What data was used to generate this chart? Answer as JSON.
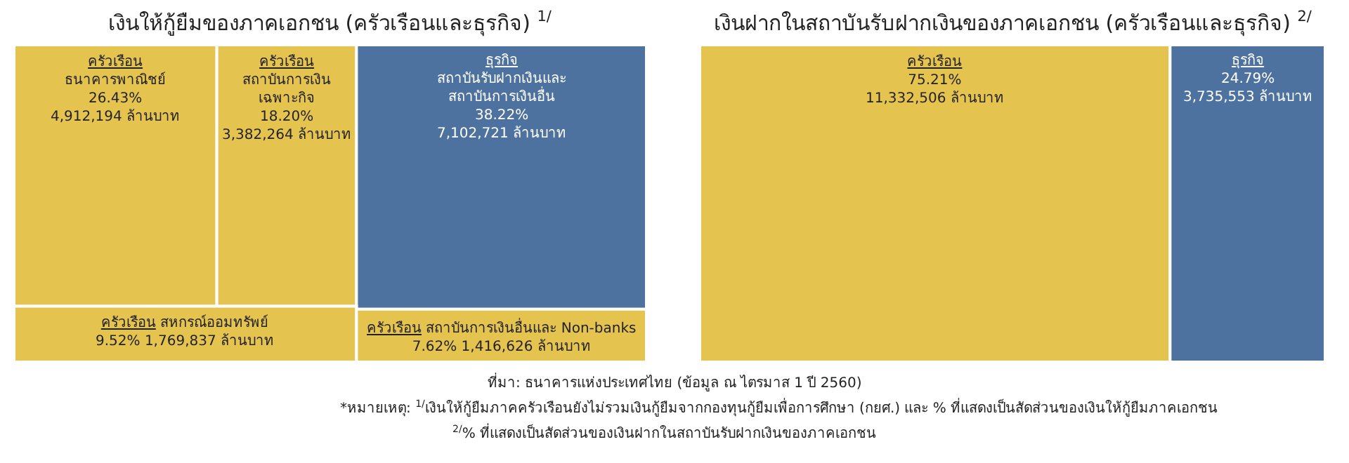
{
  "chart_data": [
    {
      "type": "other",
      "title": "เงินให้กู้ยืมของภาคเอกชน (ครัวเรือนและธุรกิจ) $^{1/}$",
      "categories": [
        "ครัวเรือน\nธนาคารพาณิชย์",
        "ครัวเรือน\nสถาบันการเงิน\nเฉพาะกิจ",
        "ธุรกิจ\nสถาบันรับฝากเงินและ\nสถาบันการเงินอื่น",
        "ครัวเรือน\nสหกรณ์ออมทรัพย์",
        "ครัวเรือน\nสถาบันการเงินอื่นและ Non-banks"
      ],
      "values": [
        26.43,
        18.2,
        38.22,
        9.52,
        7.62
      ],
      "value_labels": [
        "26.43%\n4,912,194 ล้านบาท",
        "18.20%\n3,382,264 ล้านบาท",
        "38.22%\n7,102,721 ล้านบาท",
        "9.52%\n1,769,837 ล้านบาท",
        "7.62%\n1,416,626 ล้านบาท"
      ],
      "colors": [
        "#e5c34f",
        "#e5c34f",
        "#4e72a0",
        "#e5c34f",
        "#e5c34f"
      ],
      "annotations": [
        "ที่มา: ธนาคารแห่งประเทศไทย (ข้อมูล ณ ไตรมาส 1 ปี 2560)",
        "*หมายเหตุ: $^{1/}$เงินให้กู้ยืมภาคครัวเรือนยังไม่รวมเงินกู้ยืมจากกองทุนกู้ยืมเพื่อการศึกษา (กยศ.) และ % ที่แสดงเป็นสัดส่วนของเงินให้กู้ยืมภาคเอกชน",
        "$^{2/}$% ที่แสดงเป็นสัดส่วนของเงินฝากในสถาบันรับฝากเงินของภาคเอกชน"
      ]
    },
    {
      "type": "other",
      "title": "เงินฝากในสถาบันรับฝากเงินของภาคเอกชน (ครัวเรือนและธุรกิจ) $^{2/}$",
      "categories": [
        "ครัวเรือน",
        "ธุรกิจ"
      ],
      "values": [
        75.21,
        24.79
      ],
      "value_labels": [
        "75.21%\n11,332,506 ล้านบาท",
        "24.79%\n3,735,553 ล้านบาท"
      ],
      "colors": [
        "#e5c34f",
        "#4e72a0"
      ]
    }
  ]
}
